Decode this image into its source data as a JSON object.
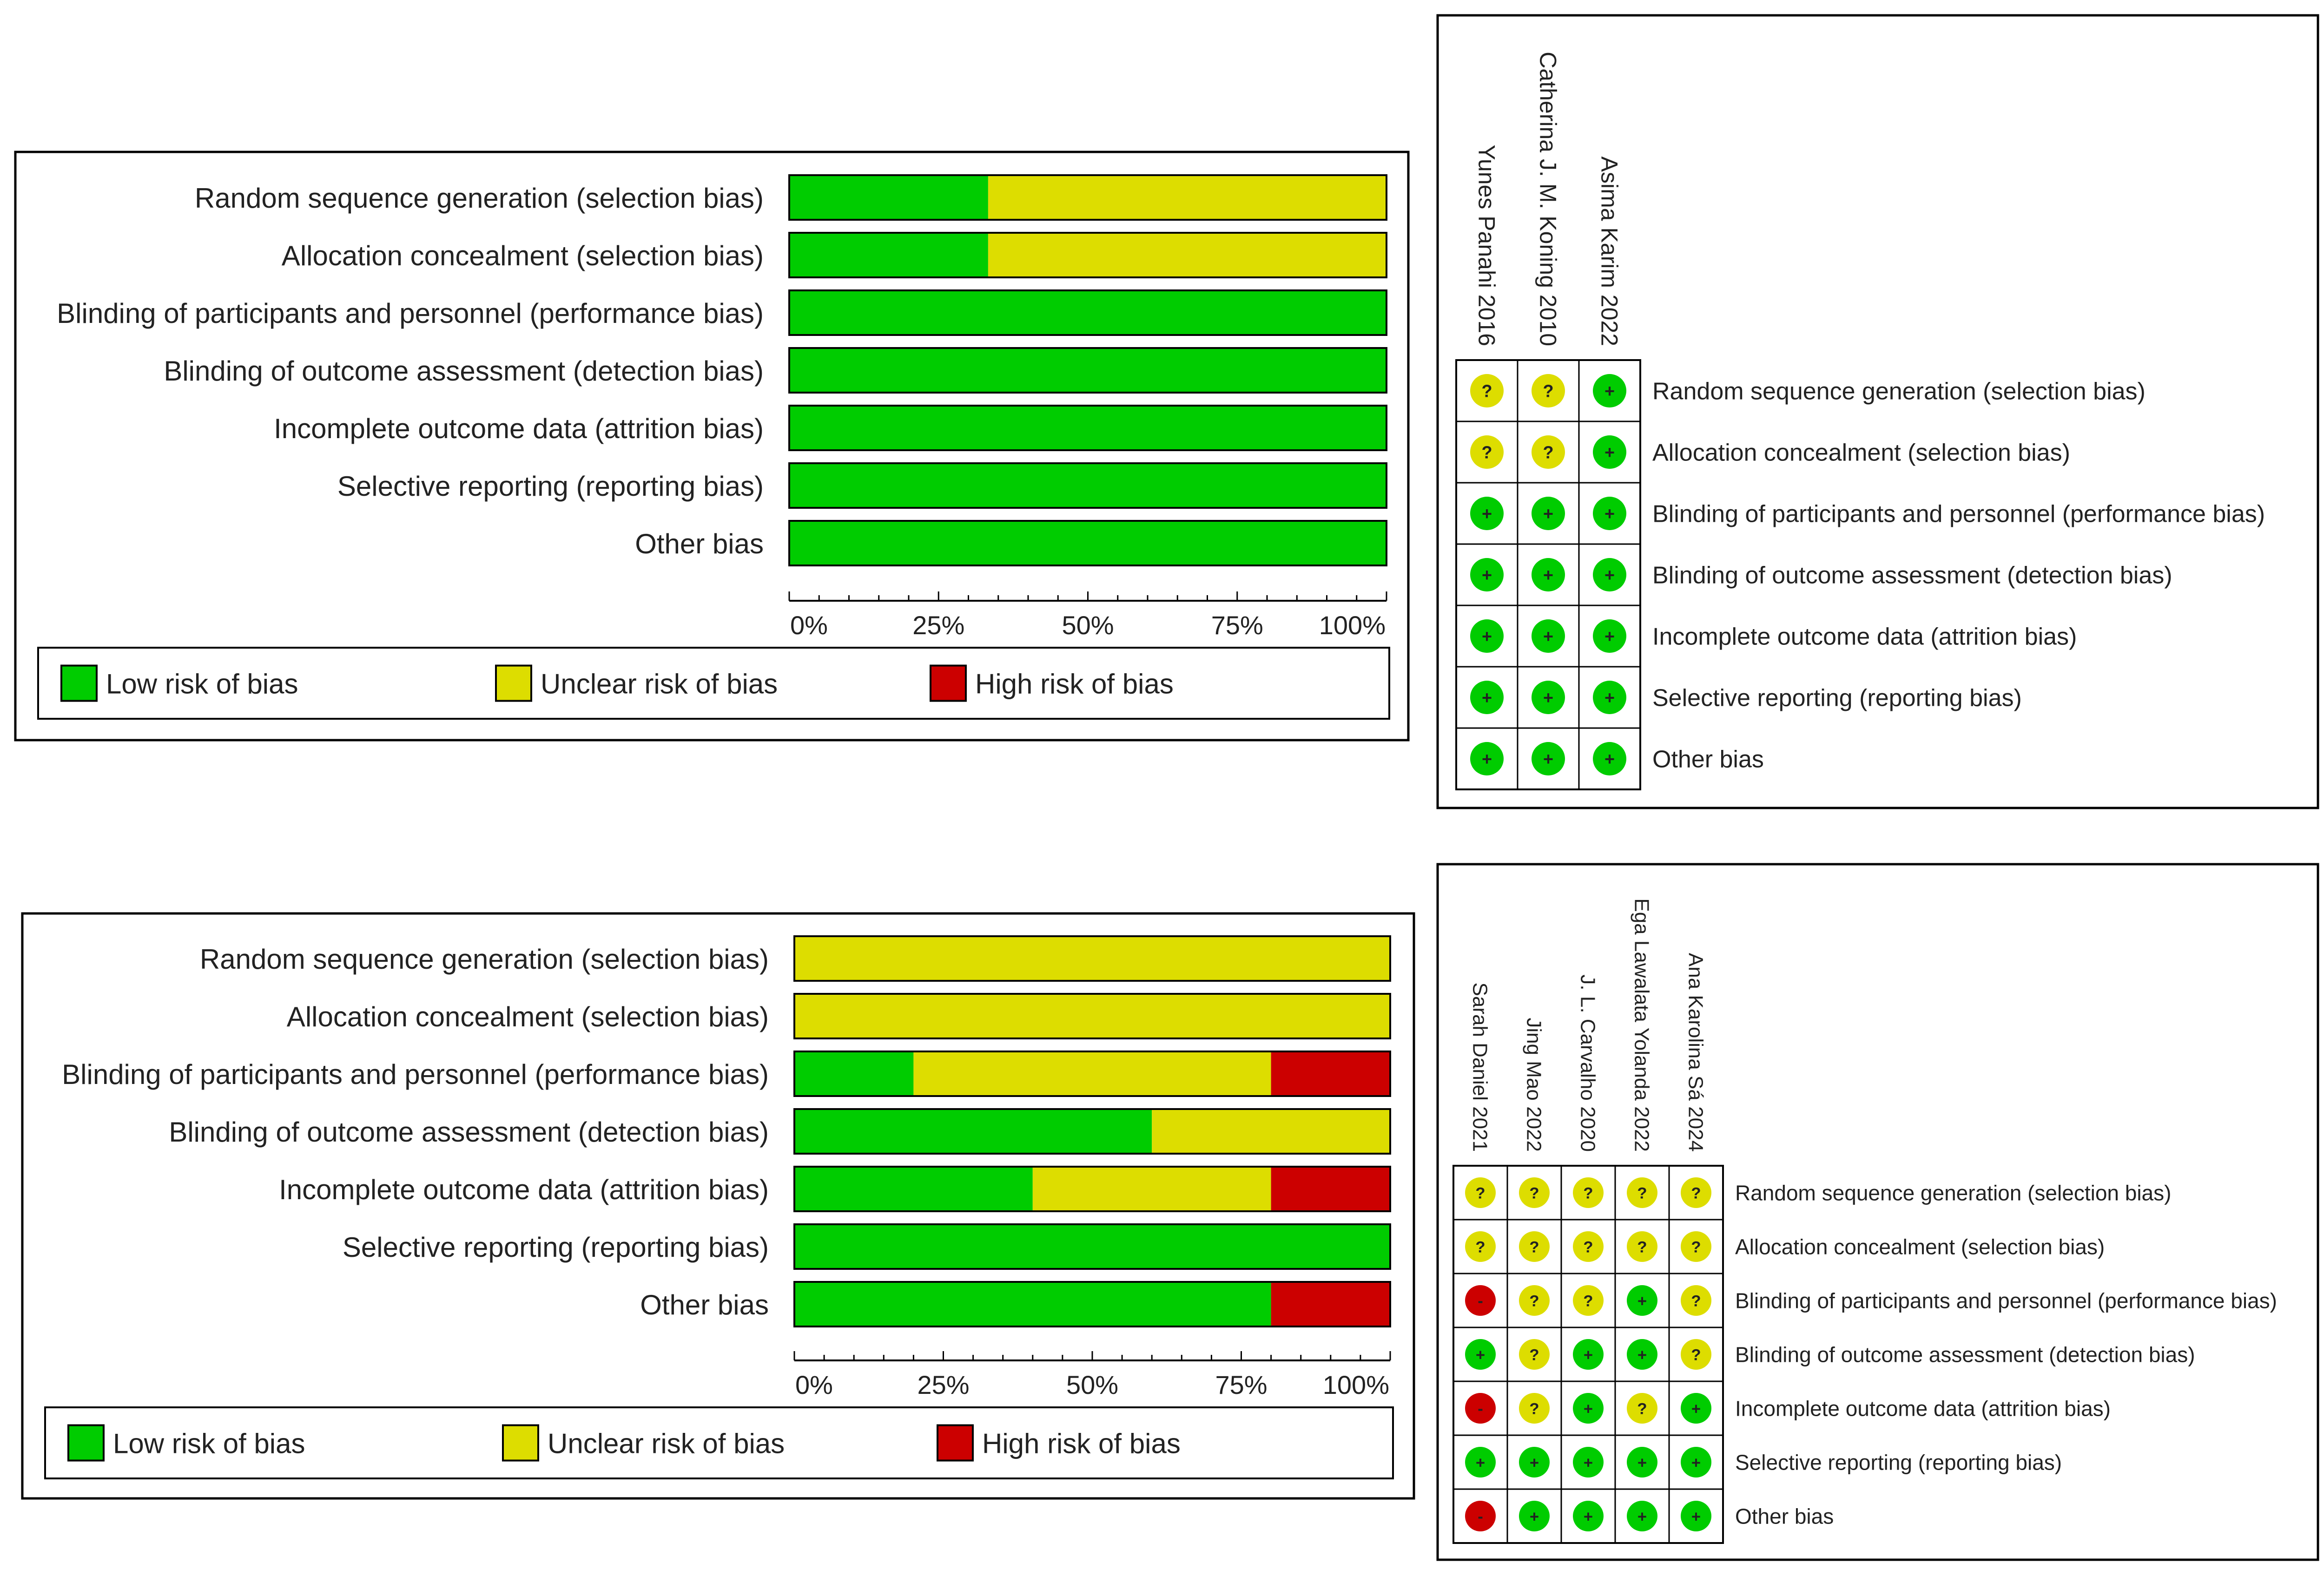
{
  "colors": {
    "low": "#00CC00",
    "unclear": "#DDDD00",
    "high": "#CC0000",
    "frame": "#000000"
  },
  "symbols": {
    "low": "+",
    "unclear": "?",
    "high": "-"
  },
  "bias_domains": [
    "Random sequence generation (selection bias)",
    "Allocation concealment (selection bias)",
    "Blinding of participants and personnel (performance bias)",
    "Blinding of outcome assessment (detection bias)",
    "Incomplete outcome data (attrition bias)",
    "Selective reporting (reporting bias)",
    "Other bias"
  ],
  "legend": {
    "low": "Low risk of bias",
    "unclear": "Unclear risk of bias",
    "high": "High risk of bias"
  },
  "axis_ticks": [
    "0%",
    "25%",
    "50%",
    "75%",
    "100%"
  ],
  "chart_data": [
    {
      "type": "bar",
      "stacked": true,
      "orientation": "horizontal",
      "categories": [
        "Random sequence generation (selection bias)",
        "Allocation concealment (selection bias)",
        "Blinding of participants and personnel (performance bias)",
        "Blinding of outcome assessment (detection bias)",
        "Incomplete outcome data (attrition bias)",
        "Selective reporting (reporting bias)",
        "Other bias"
      ],
      "series": [
        {
          "name": "Low risk of bias",
          "values": [
            33.3,
            33.3,
            100,
            100,
            100,
            100,
            100
          ]
        },
        {
          "name": "Unclear risk of bias",
          "values": [
            66.7,
            66.7,
            0,
            0,
            0,
            0,
            0
          ]
        },
        {
          "name": "High risk of bias",
          "values": [
            0,
            0,
            0,
            0,
            0,
            0,
            0
          ]
        }
      ],
      "xlim": [
        0,
        100
      ],
      "xticks": [
        "0%",
        "25%",
        "50%",
        "75%",
        "100%"
      ],
      "legend": "bottom"
    },
    {
      "type": "table",
      "studies": [
        "Yunes Panahi 2016",
        "Catherina J. M. Koning 2010",
        "Asima Karim 2022"
      ],
      "rows": [
        [
          "unclear",
          "unclear",
          "low"
        ],
        [
          "unclear",
          "unclear",
          "low"
        ],
        [
          "low",
          "low",
          "low"
        ],
        [
          "low",
          "low",
          "low"
        ],
        [
          "low",
          "low",
          "low"
        ],
        [
          "low",
          "low",
          "low"
        ],
        [
          "low",
          "low",
          "low"
        ]
      ]
    },
    {
      "type": "bar",
      "stacked": true,
      "orientation": "horizontal",
      "categories": [
        "Random sequence generation (selection bias)",
        "Allocation concealment (selection bias)",
        "Blinding of participants and personnel (performance bias)",
        "Blinding of outcome assessment (detection bias)",
        "Incomplete outcome data (attrition bias)",
        "Selective reporting (reporting bias)",
        "Other bias"
      ],
      "series": [
        {
          "name": "Low risk of bias",
          "values": [
            0,
            0,
            20,
            60,
            40,
            100,
            80
          ]
        },
        {
          "name": "Unclear risk of bias",
          "values": [
            100,
            100,
            60,
            40,
            40,
            0,
            0
          ]
        },
        {
          "name": "High risk of bias",
          "values": [
            0,
            0,
            20,
            0,
            20,
            0,
            20
          ]
        }
      ],
      "xlim": [
        0,
        100
      ],
      "xticks": [
        "0%",
        "25%",
        "50%",
        "75%",
        "100%"
      ],
      "legend": "bottom"
    },
    {
      "type": "table",
      "studies": [
        "Sarah Daniel 2021",
        "Jing Mao 2022",
        "J. L. Carvalho 2020",
        "Ega Lawalata Yolanda 2022",
        "Ana Karolina Sá 2024"
      ],
      "rows": [
        [
          "unclear",
          "unclear",
          "unclear",
          "unclear",
          "unclear"
        ],
        [
          "unclear",
          "unclear",
          "unclear",
          "unclear",
          "unclear"
        ],
        [
          "high",
          "unclear",
          "unclear",
          "low",
          "unclear"
        ],
        [
          "low",
          "unclear",
          "low",
          "low",
          "unclear"
        ],
        [
          "high",
          "unclear",
          "low",
          "unclear",
          "low"
        ],
        [
          "low",
          "low",
          "low",
          "low",
          "low"
        ],
        [
          "high",
          "low",
          "low",
          "low",
          "low"
        ]
      ]
    }
  ]
}
